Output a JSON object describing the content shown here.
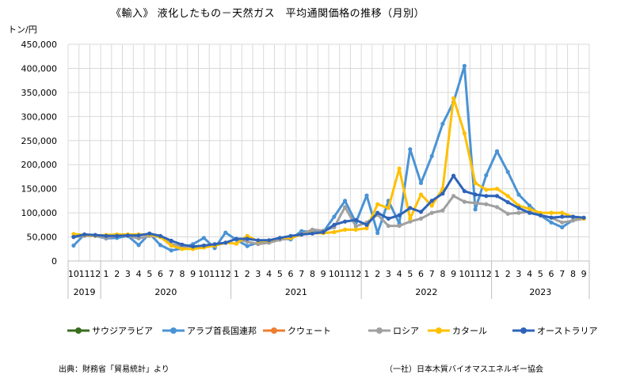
{
  "page": {
    "title": "《輸入》 液化したもの－天然ガス　平均通関価格の推移（月別）",
    "unit_label": "トン/円",
    "source": "出典：財務省「貿易統計」より",
    "credit": "（一社）日本木質バイオマスエネルギー協会"
  },
  "chart_data": {
    "type": "line",
    "title": "《輸入》 液化したもの－天然ガス　平均通関価格の推移（月別）",
    "ylabel": "トン/円",
    "ylim": [
      0,
      450000
    ],
    "yticks": [
      0,
      50000,
      100000,
      150000,
      200000,
      250000,
      300000,
      350000,
      400000,
      450000
    ],
    "ytick_labels": [
      "0",
      "50,000",
      "100,000",
      "150,000",
      "200,000",
      "250,000",
      "300,000",
      "350,000",
      "400,000",
      "450,000"
    ],
    "grid": true,
    "legend_position": "bottom",
    "x_month_labels": [
      "10",
      "11",
      "12",
      "1",
      "2",
      "3",
      "4",
      "5",
      "6",
      "7",
      "8",
      "9",
      "10",
      "11",
      "12",
      "1",
      "2",
      "3",
      "4",
      "5",
      "6",
      "7",
      "8",
      "9",
      "10",
      "11",
      "12",
      "1",
      "2",
      "3",
      "4",
      "5",
      "6",
      "7",
      "8",
      "9",
      "10",
      "11",
      "12",
      "1",
      "2",
      "3",
      "4",
      "5",
      "6",
      "7",
      "8",
      "9"
    ],
    "year_groups": [
      {
        "label": "2019",
        "count": 3
      },
      {
        "label": "2020",
        "count": 12
      },
      {
        "label": "2021",
        "count": 12
      },
      {
        "label": "2022",
        "count": 12
      },
      {
        "label": "2023",
        "count": 9
      }
    ],
    "series": [
      {
        "name": "サウジアラビア",
        "color": "#3a6e1f",
        "values": [
          null,
          null,
          null,
          null,
          null,
          null,
          null,
          null,
          null,
          null,
          null,
          null,
          null,
          null,
          null,
          null,
          null,
          null,
          null,
          null,
          null,
          null,
          null,
          null,
          null,
          null,
          null,
          null,
          null,
          null,
          null,
          null,
          null,
          null,
          null,
          null,
          null,
          null,
          null,
          null,
          null,
          null,
          null,
          null,
          null,
          null,
          null,
          null
        ]
      },
      {
        "name": "アラブ首長国連邦",
        "color": "#4a93d4",
        "values": [
          32000,
          55000,
          52000,
          47000,
          48000,
          52000,
          33000,
          57000,
          33000,
          22000,
          26000,
          35000,
          48000,
          27000,
          59000,
          44000,
          31000,
          38000,
          40000,
          47000,
          45000,
          62000,
          60000,
          60000,
          92000,
          125000,
          80000,
          136000,
          58000,
          125000,
          78000,
          232000,
          162000,
          218000,
          285000,
          330000,
          405000,
          107000,
          178000,
          228000,
          185000,
          138000,
          115000,
          95000,
          80000,
          70000,
          85000,
          88000
        ]
      },
      {
        "name": "クウェート",
        "color": "#ed7d31",
        "values": [
          null,
          null,
          null,
          null,
          null,
          null,
          null,
          null,
          null,
          null,
          null,
          null,
          null,
          null,
          null,
          null,
          null,
          null,
          null,
          null,
          null,
          null,
          null,
          null,
          null,
          null,
          null,
          null,
          null,
          null,
          null,
          null,
          null,
          null,
          null,
          null,
          null,
          null,
          null,
          null,
          null,
          null,
          null,
          null,
          null,
          null,
          null,
          null
        ]
      },
      {
        "name": "ロシア",
        "color": "#a0a0a0",
        "values": [
          50000,
          52000,
          52000,
          48000,
          52000,
          52000,
          47000,
          52000,
          50000,
          35000,
          30000,
          30000,
          32000,
          33000,
          38000,
          46000,
          40000,
          35000,
          38000,
          44000,
          47000,
          56000,
          65000,
          63000,
          70000,
          112000,
          72000,
          80000,
          96000,
          73000,
          73000,
          82000,
          88000,
          100000,
          105000,
          135000,
          123000,
          120000,
          118000,
          112000,
          98000,
          100000,
          102000,
          95000,
          90000,
          80000,
          84000,
          88000
        ]
      },
      {
        "name": "カタール",
        "color": "#ffc000",
        "values": [
          56000,
          54000,
          53000,
          54000,
          55000,
          55000,
          55000,
          55000,
          50000,
          32000,
          25000,
          25000,
          28000,
          32000,
          38000,
          36000,
          52000,
          41000,
          42000,
          48000,
          48000,
          55000,
          58000,
          58000,
          60000,
          65000,
          65000,
          68000,
          118000,
          110000,
          192000,
          88000,
          138000,
          115000,
          150000,
          338000,
          265000,
          162000,
          148000,
          150000,
          135000,
          115000,
          108000,
          100000,
          100000,
          100000,
          92000,
          88000
        ]
      },
      {
        "name": "オーストラリア",
        "color": "#2e63b8",
        "values": [
          50000,
          55000,
          54000,
          52000,
          52000,
          53000,
          53000,
          57000,
          52000,
          42000,
          34000,
          30000,
          32000,
          35000,
          38000,
          46000,
          46000,
          43000,
          43000,
          48000,
          52000,
          55000,
          57000,
          60000,
          75000,
          82000,
          85000,
          75000,
          100000,
          88000,
          95000,
          110000,
          102000,
          125000,
          140000,
          177000,
          145000,
          138000,
          135000,
          135000,
          122000,
          110000,
          100000,
          95000,
          90000,
          92000,
          92000,
          90000
        ]
      }
    ]
  }
}
